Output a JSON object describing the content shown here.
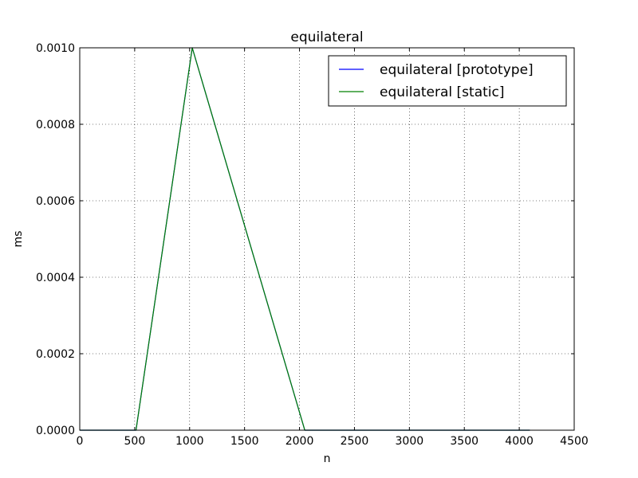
{
  "chart_data": {
    "type": "line",
    "title": "equilateral",
    "xlabel": "n",
    "ylabel": "ms",
    "xlim": [
      0,
      4500
    ],
    "ylim": [
      0,
      0.001
    ],
    "xticks": [
      "0",
      "500",
      "1000",
      "1500",
      "2000",
      "2500",
      "3000",
      "3500",
      "4000",
      "4500"
    ],
    "yticks": [
      "0.0000",
      "0.0002",
      "0.0004",
      "0.0006",
      "0.0008",
      "0.0010"
    ],
    "grid": true,
    "legend_position": "top-right",
    "series": [
      {
        "name": "equilateral [prototype]",
        "color": "#0000ff",
        "x": [
          1,
          2,
          4,
          8,
          16,
          32,
          64,
          128,
          256,
          512,
          1024,
          2048,
          4096
        ],
        "y": [
          0,
          0,
          0,
          0,
          0,
          0,
          0,
          0,
          0,
          0,
          0.001,
          0,
          0
        ]
      },
      {
        "name": "equilateral [static]",
        "color": "#008000",
        "x": [
          1,
          2,
          4,
          8,
          16,
          32,
          64,
          128,
          256,
          512,
          1024,
          2048,
          4096
        ],
        "y": [
          0,
          0,
          0,
          0,
          0,
          0,
          0,
          0,
          0,
          0,
          0.001,
          0,
          0
        ]
      }
    ]
  }
}
